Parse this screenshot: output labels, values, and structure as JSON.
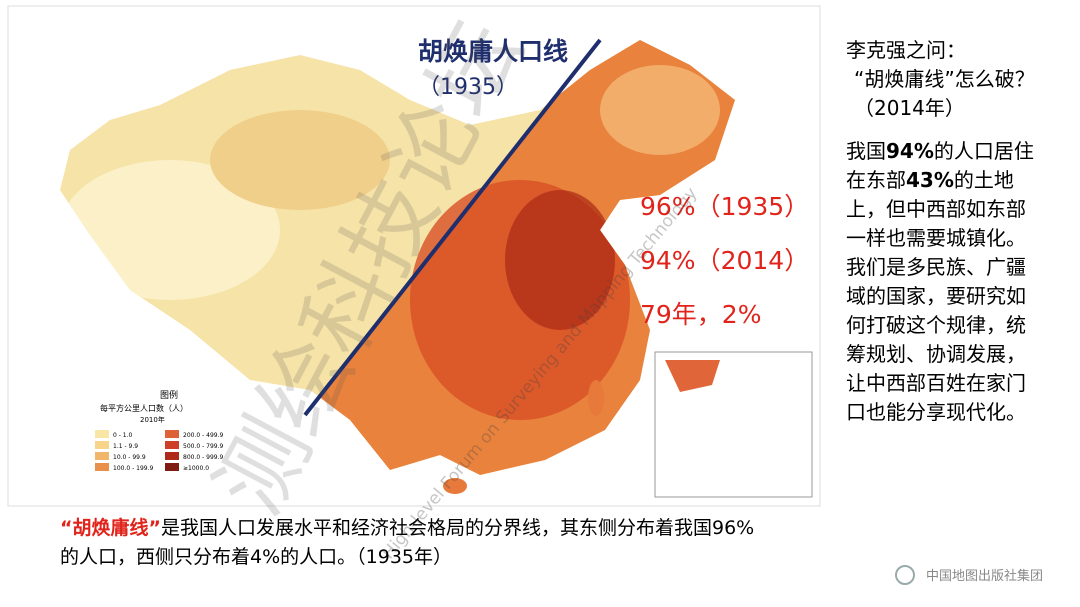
{
  "map": {
    "line_label": "胡焕庸人口线",
    "line_year": "（1935）",
    "stats": [
      "96%（1935）",
      "94%（2014）",
      "79年，2%"
    ],
    "legend": {
      "title": "图例",
      "subtitle": "每平方公里人口数（人）",
      "year": "2010年",
      "items": [
        "0 - 1.0",
        "1.1 - 9.9",
        "10.0 - 99.9",
        "100.0 - 199.9",
        "200.0 - 499.9",
        "500.0 - 799.9",
        "800.0 - 999.9",
        "≥1000.0"
      ]
    }
  },
  "watermark": {
    "calligraphy": "测绘科技论坛",
    "english": "High-level Forum on Surveying and Mapping Technology"
  },
  "sidebar": {
    "heading": "李克强之问：",
    "question": "“胡焕庸线”怎么破？（2014年）",
    "body": [
      "我国",
      "94%",
      "的人口居住在东部",
      "43%",
      "的土地上，但中西部如东部一样也需要城镇化。我们是多民族、广疆域的国家，要研究如何打破这个规律，统筹规划、协调发展，让中西部百姓在家门口也能分享现代化。"
    ]
  },
  "caption": {
    "highlight": "“胡焕庸线”",
    "text": "是我国人口发展水平和经济社会格局的分界线，其东侧分布着我国96%的人口，西侧只分布着4%的人口。（1935年）"
  },
  "footer": {
    "publisher": "中国地图出版社集团"
  }
}
